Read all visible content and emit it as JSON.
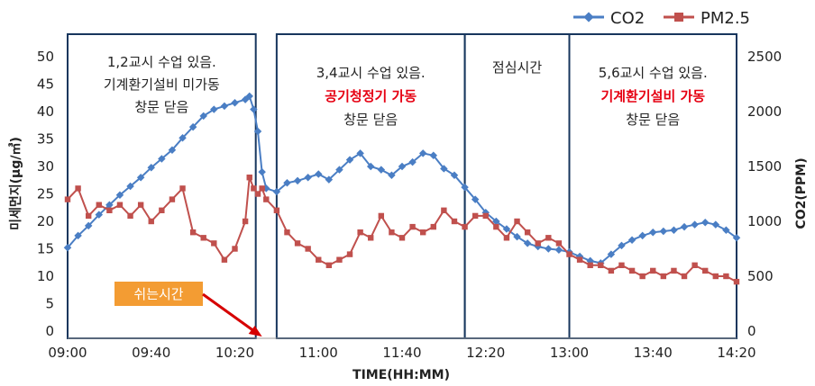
{
  "chart_data": {
    "type": "line",
    "xlabel": "TIME(HH:MM)",
    "ylabel_left": "미세먼지(μg/㎥)",
    "ylabel_right": "CO2(PPM)",
    "x_ticks": [
      "09:00",
      "09:40",
      "10:20",
      "11:00",
      "11:40",
      "12:20",
      "13:00",
      "13:40",
      "14:20"
    ],
    "y_left_ticks": [
      "0",
      "5",
      "10",
      "15",
      "20",
      "25",
      "30",
      "35",
      "40",
      "45",
      "50"
    ],
    "y_right_ticks": [
      "0",
      "500",
      "1000",
      "1500",
      "2000",
      "2500"
    ],
    "ylim_left": [
      0,
      50
    ],
    "ylim_right": [
      0,
      2500
    ],
    "legend_position": "top-right",
    "series": [
      {
        "name": "CO2",
        "axis": "right",
        "color": "#4a7ec4",
        "marker": "diamond",
        "points": [
          [
            "09:00",
            760
          ],
          [
            "09:05",
            870
          ],
          [
            "09:10",
            960
          ],
          [
            "09:15",
            1060
          ],
          [
            "09:20",
            1150
          ],
          [
            "09:25",
            1240
          ],
          [
            "09:30",
            1320
          ],
          [
            "09:35",
            1400
          ],
          [
            "09:40",
            1490
          ],
          [
            "09:45",
            1570
          ],
          [
            "09:50",
            1650
          ],
          [
            "09:55",
            1760
          ],
          [
            "10:00",
            1860
          ],
          [
            "10:05",
            1960
          ],
          [
            "10:10",
            2020
          ],
          [
            "10:15",
            2050
          ],
          [
            "10:20",
            2080
          ],
          [
            "10:25",
            2110
          ],
          [
            "10:27",
            2140
          ],
          [
            "10:29",
            2020
          ],
          [
            "10:31",
            1820
          ],
          [
            "10:33",
            1450
          ],
          [
            "10:35",
            1300
          ],
          [
            "10:40",
            1270
          ],
          [
            "10:45",
            1350
          ],
          [
            "10:50",
            1370
          ],
          [
            "10:55",
            1400
          ],
          [
            "11:00",
            1430
          ],
          [
            "11:05",
            1380
          ],
          [
            "11:10",
            1470
          ],
          [
            "11:15",
            1560
          ],
          [
            "11:20",
            1620
          ],
          [
            "11:25",
            1500
          ],
          [
            "11:30",
            1470
          ],
          [
            "11:35",
            1420
          ],
          [
            "11:40",
            1500
          ],
          [
            "11:45",
            1540
          ],
          [
            "11:50",
            1620
          ],
          [
            "11:55",
            1600
          ],
          [
            "12:00",
            1480
          ],
          [
            "12:05",
            1420
          ],
          [
            "12:10",
            1310
          ],
          [
            "12:15",
            1200
          ],
          [
            "12:20",
            1080
          ],
          [
            "12:25",
            1000
          ],
          [
            "12:30",
            930
          ],
          [
            "12:35",
            860
          ],
          [
            "12:40",
            800
          ],
          [
            "12:45",
            770
          ],
          [
            "12:50",
            750
          ],
          [
            "12:55",
            740
          ],
          [
            "13:00",
            720
          ],
          [
            "13:05",
            680
          ],
          [
            "13:10",
            640
          ],
          [
            "13:15",
            620
          ],
          [
            "13:20",
            700
          ],
          [
            "13:25",
            780
          ],
          [
            "13:30",
            830
          ],
          [
            "13:35",
            870
          ],
          [
            "13:40",
            900
          ],
          [
            "13:45",
            910
          ],
          [
            "13:50",
            920
          ],
          [
            "13:55",
            950
          ],
          [
            "14:00",
            970
          ],
          [
            "14:05",
            990
          ],
          [
            "14:10",
            970
          ],
          [
            "14:15",
            920
          ],
          [
            "14:20",
            850
          ]
        ]
      },
      {
        "name": "PM2.5",
        "axis": "left",
        "color": "#c0504d",
        "marker": "square",
        "points": [
          [
            "09:00",
            24
          ],
          [
            "09:05",
            26
          ],
          [
            "09:10",
            21
          ],
          [
            "09:15",
            23
          ],
          [
            "09:20",
            22
          ],
          [
            "09:25",
            23
          ],
          [
            "09:30",
            21
          ],
          [
            "09:35",
            23
          ],
          [
            "09:40",
            20
          ],
          [
            "09:45",
            22
          ],
          [
            "09:50",
            24
          ],
          [
            "09:55",
            26
          ],
          [
            "10:00",
            18
          ],
          [
            "10:05",
            17
          ],
          [
            "10:10",
            16
          ],
          [
            "10:15",
            13
          ],
          [
            "10:20",
            15
          ],
          [
            "10:25",
            20
          ],
          [
            "10:27",
            28
          ],
          [
            "10:29",
            26
          ],
          [
            "10:31",
            25
          ],
          [
            "10:33",
            26
          ],
          [
            "10:35",
            24
          ],
          [
            "10:40",
            22
          ],
          [
            "10:45",
            18
          ],
          [
            "10:50",
            16
          ],
          [
            "10:55",
            15
          ],
          [
            "11:00",
            13
          ],
          [
            "11:05",
            12
          ],
          [
            "11:10",
            13
          ],
          [
            "11:15",
            14
          ],
          [
            "11:20",
            18
          ],
          [
            "11:25",
            17
          ],
          [
            "11:30",
            21
          ],
          [
            "11:35",
            18
          ],
          [
            "11:40",
            17
          ],
          [
            "11:45",
            19
          ],
          [
            "11:50",
            18
          ],
          [
            "11:55",
            19
          ],
          [
            "12:00",
            22
          ],
          [
            "12:05",
            20
          ],
          [
            "12:10",
            19
          ],
          [
            "12:15",
            21
          ],
          [
            "12:20",
            21
          ],
          [
            "12:25",
            19
          ],
          [
            "12:30",
            17
          ],
          [
            "12:35",
            20
          ],
          [
            "12:40",
            18
          ],
          [
            "12:45",
            16
          ],
          [
            "12:50",
            17
          ],
          [
            "12:55",
            16
          ],
          [
            "13:00",
            14
          ],
          [
            "13:05",
            13
          ],
          [
            "13:10",
            12
          ],
          [
            "13:15",
            12
          ],
          [
            "13:20",
            11
          ],
          [
            "13:25",
            12
          ],
          [
            "13:30",
            11
          ],
          [
            "13:35",
            10
          ],
          [
            "13:40",
            11
          ],
          [
            "13:45",
            10
          ],
          [
            "13:50",
            11
          ],
          [
            "13:55",
            10
          ],
          [
            "14:00",
            12
          ],
          [
            "14:05",
            11
          ],
          [
            "14:10",
            10
          ],
          [
            "14:15",
            10
          ],
          [
            "14:20",
            9
          ]
        ]
      }
    ],
    "periods": [
      {
        "start": "09:00",
        "end": "10:30",
        "lines": [
          "1,2교시 수업 있음.",
          "기계환기설비 미가동",
          "창문 닫음"
        ],
        "red_line": -1
      },
      {
        "start": "10:40",
        "end": "12:10",
        "lines": [
          "3,4교시 수업 있음.",
          "공기청정기 가동",
          "창문 닫음"
        ],
        "red_line": 1
      },
      {
        "start": "12:10",
        "end": "13:00",
        "lines": [
          "점심시간"
        ],
        "red_line": -1
      },
      {
        "start": "13:00",
        "end": "14:20",
        "lines": [
          "5,6교시 수업 있음.",
          "기계환기설비 가동",
          "창문 닫음"
        ],
        "red_line": 1
      }
    ],
    "annotations": [
      {
        "text": "쉬는시간",
        "color": "#f39c33",
        "arrow_to": "10:33",
        "arrow_color": "#d60000"
      }
    ]
  }
}
